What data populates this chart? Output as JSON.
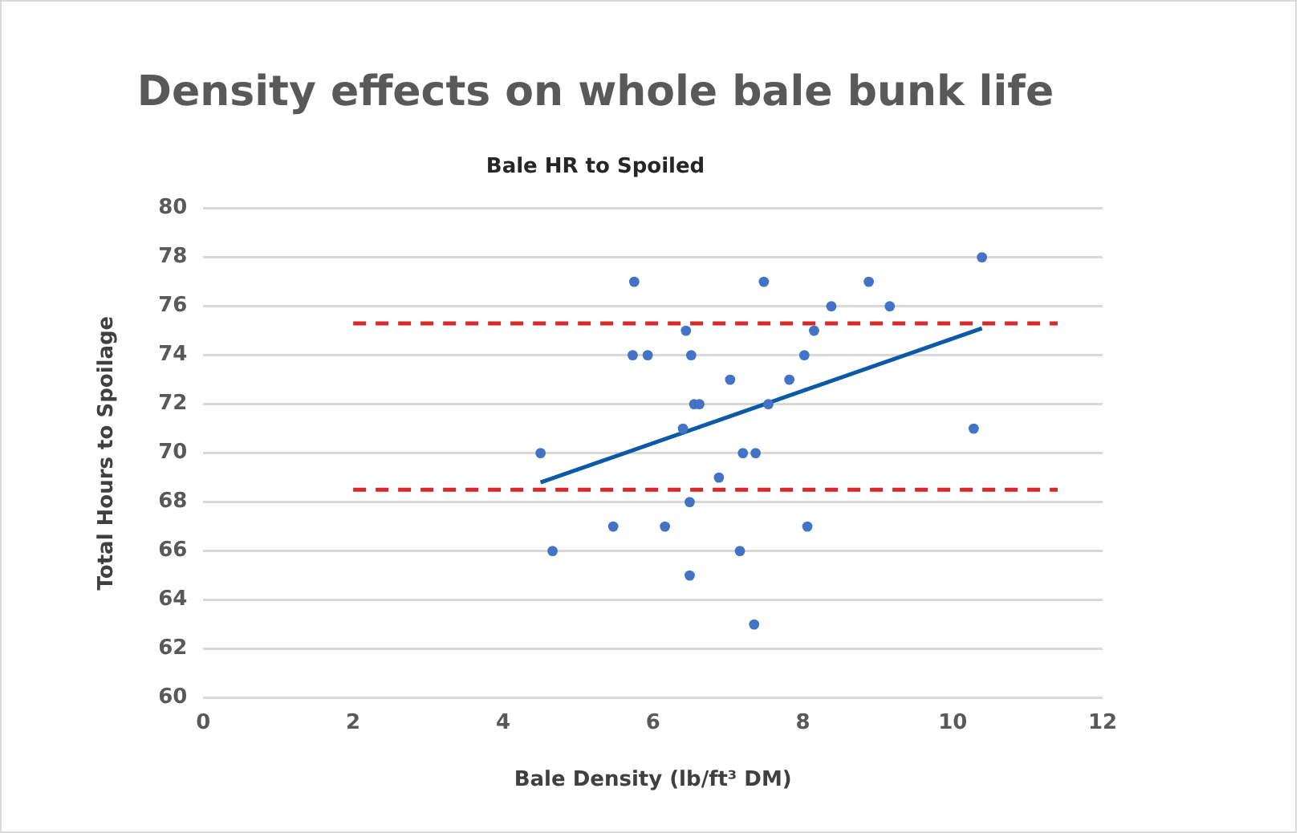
{
  "chart_data": {
    "type": "scatter",
    "title": "Density effects on whole bale bunk life",
    "subtitle": "Bale HR to Spoiled",
    "xlabel": "Bale Density (lb/ft³ DM)",
    "ylabel": "Total Hours to Spoilage",
    "xlim": [
      0,
      12
    ],
    "xticks": [
      0,
      2,
      4,
      6,
      8,
      10,
      12
    ],
    "ylim": [
      60,
      80
    ],
    "yticks": [
      60,
      62,
      64,
      66,
      68,
      70,
      72,
      74,
      76,
      78,
      80
    ],
    "grid": "y",
    "legend": false,
    "marker": "circle",
    "series": [
      {
        "color": "#4472c4",
        "x": [
          4.5,
          4.66,
          5.47,
          5.75,
          5.73,
          5.93,
          6.44,
          6.51,
          6.4,
          6.55,
          6.62,
          6.49,
          6.49,
          6.16,
          6.88,
          7.03,
          7.2,
          7.37,
          7.16,
          7.35,
          7.48,
          7.54,
          7.82,
          8.02,
          8.06,
          8.15,
          8.38,
          8.88,
          9.16,
          10.28,
          10.39
        ],
        "values": [
          70,
          66,
          67,
          77,
          74,
          74,
          75,
          74,
          71,
          72,
          72,
          68,
          65,
          67,
          69,
          73,
          70,
          70,
          66,
          63,
          77,
          72,
          73,
          74,
          67,
          75,
          76,
          77,
          76,
          71,
          78
        ]
      },
      {
        "type": "line",
        "color": "#0b5aa8",
        "marker": "none",
        "line_style": "solid",
        "x": [
          4.5,
          10.39
        ],
        "values": [
          68.8,
          75.1
        ]
      },
      {
        "type": "line",
        "color": "#d42a2a",
        "marker": "none",
        "line_style": "dashed",
        "x": [
          2,
          11.4
        ],
        "values": [
          75.3,
          75.3
        ]
      },
      {
        "type": "line",
        "color": "#d42a2a",
        "marker": "none",
        "line_style": "dashed",
        "x": [
          2,
          11.4
        ],
        "values": [
          68.5,
          68.5
        ]
      }
    ]
  }
}
